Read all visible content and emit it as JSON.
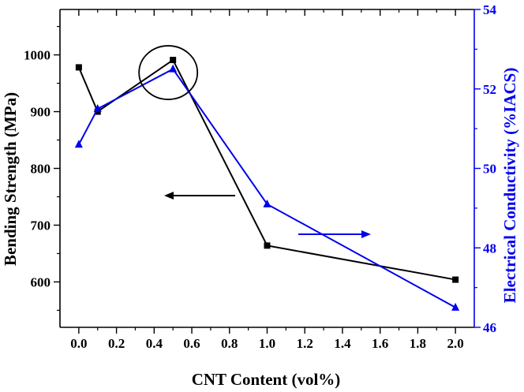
{
  "chart_data": {
    "type": "line",
    "xlabel": "CNT Content (vol%)",
    "ylabel_left": "Bending Strength (MPa)",
    "ylabel_right": "Electrical Conductivity (%IACS)",
    "xlim": [
      -0.1,
      2.1
    ],
    "ylim_left": [
      520,
      1080
    ],
    "ylim_right": [
      46,
      54
    ],
    "xticks": [
      "0.0",
      "0.2",
      "0.4",
      "0.6",
      "0.8",
      "1.0",
      "1.2",
      "1.4",
      "1.6",
      "1.8",
      "2.0"
    ],
    "yticks_left": [
      "600",
      "700",
      "800",
      "900",
      "1000"
    ],
    "yticks_right": [
      "46",
      "48",
      "50",
      "52",
      "54"
    ],
    "series": [
      {
        "axis": "left",
        "color": "#000000",
        "marker": "square",
        "x": [
          0.0,
          0.1,
          0.5,
          1.0,
          2.0
        ],
        "y": [
          978,
          900,
          991,
          664,
          604
        ]
      },
      {
        "axis": "right",
        "color": "#0000ee",
        "marker": "triangle",
        "x": [
          0.0,
          0.1,
          0.5,
          1.0,
          2.0
        ],
        "y": [
          50.6,
          51.5,
          52.5,
          49.1,
          46.5
        ]
      }
    ],
    "annotations": [
      {
        "type": "circle",
        "around": {
          "x": 0.5,
          "y_left": 991
        }
      },
      {
        "type": "arrow",
        "direction": "left",
        "target_axis": "left",
        "color": "#000000"
      },
      {
        "type": "arrow",
        "direction": "right",
        "target_axis": "right",
        "color": "#0000ee"
      }
    ],
    "grid": false
  }
}
